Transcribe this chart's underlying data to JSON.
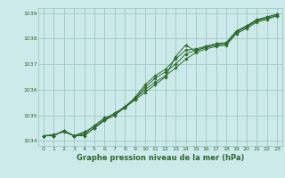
{
  "x": [
    0,
    1,
    2,
    3,
    4,
    5,
    6,
    7,
    8,
    9,
    10,
    11,
    12,
    13,
    14,
    15,
    16,
    17,
    18,
    19,
    20,
    21,
    22,
    23
  ],
  "line1": [
    1034.2,
    1034.2,
    1034.4,
    1034.2,
    1034.2,
    1034.5,
    1034.8,
    1035.1,
    1035.3,
    1035.6,
    1035.9,
    1036.2,
    1036.5,
    1037.3,
    1037.75,
    1037.5,
    1037.7,
    1037.8,
    1037.8,
    1038.3,
    1038.5,
    1038.7,
    1038.85,
    1038.95
  ],
  "line2": [
    1034.2,
    1034.2,
    1034.4,
    1034.2,
    1034.3,
    1034.6,
    1034.9,
    1035.05,
    1035.3,
    1035.7,
    1036.2,
    1036.55,
    1036.8,
    1037.2,
    1037.55,
    1037.6,
    1037.7,
    1037.8,
    1037.85,
    1038.3,
    1038.5,
    1038.75,
    1038.85,
    1038.95
  ],
  "line3": [
    1034.2,
    1034.2,
    1034.4,
    1034.2,
    1034.25,
    1034.5,
    1034.8,
    1035.0,
    1035.3,
    1035.65,
    1036.1,
    1036.45,
    1036.7,
    1037.0,
    1037.4,
    1037.55,
    1037.65,
    1037.75,
    1037.8,
    1038.25,
    1038.45,
    1038.7,
    1038.8,
    1038.9
  ],
  "line4": [
    1034.2,
    1034.25,
    1034.35,
    1034.2,
    1034.35,
    1034.55,
    1034.85,
    1035.05,
    1035.35,
    1035.65,
    1036.0,
    1036.3,
    1036.55,
    1036.85,
    1037.2,
    1037.45,
    1037.6,
    1037.7,
    1037.75,
    1038.2,
    1038.4,
    1038.65,
    1038.75,
    1038.9
  ],
  "ylim": [
    1033.8,
    1039.2
  ],
  "xlim": [
    -0.5,
    23.5
  ],
  "yticks": [
    1034,
    1035,
    1036,
    1037,
    1038,
    1039
  ],
  "xticks": [
    0,
    1,
    2,
    3,
    4,
    5,
    6,
    7,
    8,
    9,
    10,
    11,
    12,
    13,
    14,
    15,
    16,
    17,
    18,
    19,
    20,
    21,
    22,
    23
  ],
  "xlabel": "Graphe pression niveau de la mer (hPa)",
  "line_color": "#2d6a2d",
  "marker": "D",
  "marker_size": 1.8,
  "bg_color": "#cceaea",
  "grid_color": "#9bbfbf",
  "label_color": "#2d6a2d",
  "tick_label_color": "#2d6a2d",
  "xlabel_fontsize": 6.0,
  "tick_fontsize": 4.5
}
